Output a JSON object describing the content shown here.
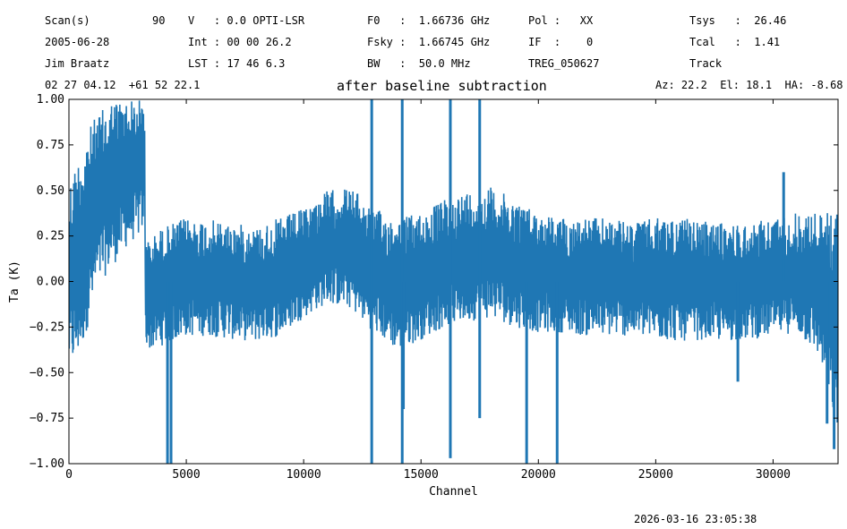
{
  "header": {
    "row1": {
      "scan_label": "Scan(s)",
      "scan_value": "90",
      "v": "V   : 0.0 OPTI-LSR",
      "f0": "F0   :  1.66736 GHz",
      "pol": "Pol :   XX",
      "tsys": "Tsys   :  26.46"
    },
    "row2": {
      "date": "2005-06-28",
      "int": "Int : 00 00 26.2",
      "fsky": "Fsky :  1.66745 GHz",
      "if": "IF  :    0",
      "tcal": "Tcal   :  1.41"
    },
    "row3": {
      "observer": "Jim Braatz",
      "lst": "LST : 17 46 6.3",
      "bw": "BW   :  50.0 MHz",
      "source": "TREG_050627",
      "procedure": "Track"
    },
    "row4": {
      "coords": "02 27 04.12  +61 52 22.1",
      "azel": "Az: 22.2  El: 18.1  HA: -8.68"
    }
  },
  "footer": {
    "timestamp": "2026-03-16 23:05:38"
  },
  "colors": {
    "series": "#1f77b4"
  },
  "chart_data": {
    "type": "line",
    "title": "after baseline subtraction",
    "xlabel": "Channel",
    "ylabel": "Ta (K)",
    "xlim": [
      0,
      32768
    ],
    "ylim": [
      -1.0,
      1.0
    ],
    "xticks": [
      0,
      5000,
      10000,
      15000,
      20000,
      25000,
      30000
    ],
    "xtick_labels": [
      "0",
      "5000",
      "10000",
      "15000",
      "20000",
      "25000",
      "30000"
    ],
    "yticks": [
      -1.0,
      -0.75,
      -0.5,
      -0.25,
      0.0,
      0.25,
      0.5,
      0.75,
      1.0
    ],
    "ytick_labels": [
      "−1.00",
      "−0.75",
      "−0.50",
      "−0.25",
      "0.00",
      "0.25",
      "0.50",
      "0.75",
      "1.00"
    ],
    "grid": false,
    "series": [
      {
        "x": [
          0,
          300,
          600,
          900,
          1200,
          1500,
          1800,
          2100,
          2400,
          2700,
          3000,
          3200,
          3300,
          3500,
          4000,
          5000,
          6000,
          7000,
          8000,
          9000,
          10000,
          11000,
          12000,
          13000,
          14000,
          15000,
          16000,
          17000,
          18000,
          19000,
          20000,
          21000,
          22000,
          23000,
          24000,
          25000,
          26000,
          27000,
          28000,
          29000,
          30000,
          31000,
          32000,
          32768
        ],
        "low": [
          -0.48,
          -0.45,
          -0.35,
          -0.2,
          -0.05,
          0.02,
          0.08,
          0.12,
          0.18,
          0.22,
          0.25,
          0.3,
          -0.35,
          -0.38,
          -0.35,
          -0.3,
          -0.3,
          -0.32,
          -0.33,
          -0.3,
          -0.2,
          -0.12,
          -0.15,
          -0.28,
          -0.38,
          -0.32,
          -0.25,
          -0.22,
          -0.2,
          -0.25,
          -0.28,
          -0.28,
          -0.3,
          -0.3,
          -0.3,
          -0.32,
          -0.33,
          -0.32,
          -0.33,
          -0.32,
          -0.3,
          -0.28,
          -0.42,
          -0.85
        ],
        "high": [
          0.55,
          0.65,
          0.75,
          0.85,
          0.92,
          0.95,
          1.0,
          1.0,
          1.0,
          1.0,
          1.0,
          1.0,
          0.22,
          0.24,
          0.3,
          0.35,
          0.34,
          0.32,
          0.3,
          0.35,
          0.4,
          0.5,
          0.52,
          0.4,
          0.35,
          0.38,
          0.45,
          0.5,
          0.52,
          0.45,
          0.38,
          0.35,
          0.35,
          0.35,
          0.32,
          0.35,
          0.35,
          0.33,
          0.32,
          0.32,
          0.35,
          0.38,
          0.38,
          0.4
        ]
      }
    ],
    "spikes": [
      {
        "x": 4200,
        "y": -1.0
      },
      {
        "x": 4350,
        "y": -1.0
      },
      {
        "x": 12900,
        "y": 1.0
      },
      {
        "x": 12900,
        "y": -1.0
      },
      {
        "x": 14200,
        "y": 1.0
      },
      {
        "x": 14200,
        "y": -1.0
      },
      {
        "x": 14250,
        "y": -0.7
      },
      {
        "x": 16250,
        "y": 1.0
      },
      {
        "x": 16250,
        "y": -0.97
      },
      {
        "x": 17500,
        "y": 1.0
      },
      {
        "x": 17500,
        "y": -0.75
      },
      {
        "x": 19500,
        "y": -1.0
      },
      {
        "x": 20800,
        "y": -1.0
      },
      {
        "x": 28500,
        "y": -0.55
      },
      {
        "x": 30450,
        "y": 0.6
      },
      {
        "x": 32300,
        "y": -0.78
      },
      {
        "x": 32600,
        "y": -0.92
      }
    ]
  }
}
